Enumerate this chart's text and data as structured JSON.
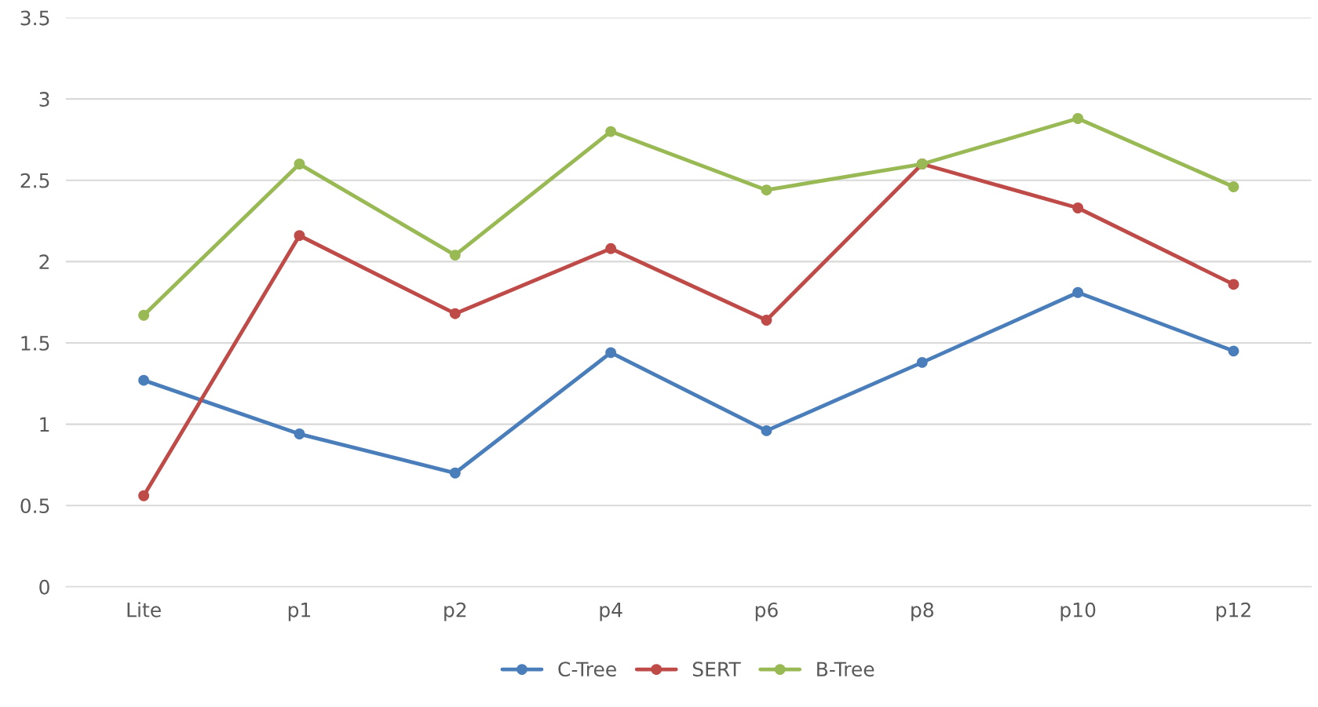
{
  "chart_data": {
    "type": "line",
    "categories": [
      "Lite",
      "p1",
      "p2",
      "p4",
      "p6",
      "p8",
      "p10",
      "p12"
    ],
    "series": [
      {
        "name": "C-Tree",
        "color": "#4a7ebb",
        "values": [
          1.27,
          0.94,
          0.7,
          1.44,
          0.96,
          1.38,
          1.81,
          1.45
        ]
      },
      {
        "name": "SERT",
        "color": "#be4b48",
        "values": [
          0.56,
          2.16,
          1.68,
          2.08,
          1.64,
          2.6,
          2.33,
          1.86
        ]
      },
      {
        "name": "B-Tree",
        "color": "#98b954",
        "values": [
          1.67,
          2.6,
          2.04,
          2.8,
          2.44,
          2.6,
          2.88,
          2.46
        ]
      }
    ],
    "ylim": [
      0,
      3.5
    ],
    "yticks": [
      0,
      0.5,
      1,
      1.5,
      2,
      2.5,
      3,
      3.5
    ],
    "grid": "y",
    "legend": "bottom",
    "marker": "circle",
    "line_style": "solid"
  }
}
